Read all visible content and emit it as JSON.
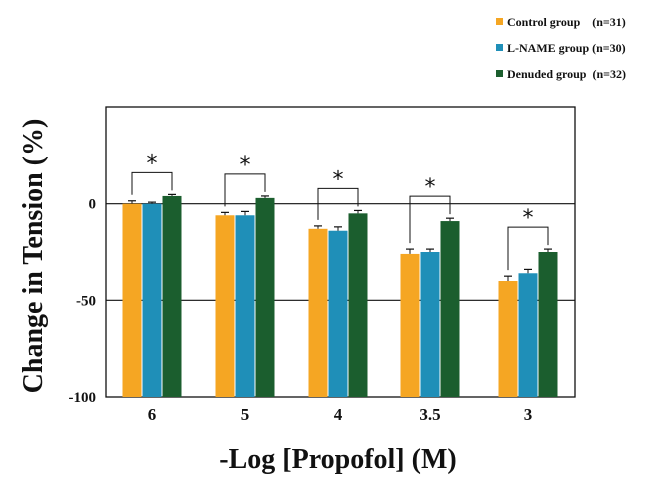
{
  "chart_data": {
    "type": "bar",
    "categories": [
      "6",
      "5",
      "4",
      "3.5",
      "3"
    ],
    "series": [
      {
        "name": "Control group",
        "count": "(n=31)",
        "color": "#f5a623",
        "values": [
          0,
          -6,
          -13,
          -26,
          -40
        ],
        "errors": [
          1.5,
          1.5,
          1.5,
          2.5,
          2.5
        ]
      },
      {
        "name": "L-NAME group",
        "count": "(n=30)",
        "color": "#1f8fb8",
        "values": [
          0,
          -6,
          -14,
          -25,
          -36
        ],
        "errors": [
          0.8,
          2,
          2,
          1.5,
          2
        ]
      },
      {
        "name": "Denuded group",
        "count": "(n=32)",
        "color": "#1b5e2e",
        "values": [
          4,
          3,
          -5,
          -9,
          -25
        ],
        "errors": [
          0.8,
          1,
          1.5,
          1.5,
          1.5
        ]
      }
    ],
    "significance": [
      "*",
      "*",
      "*",
      "*",
      "*"
    ],
    "xlabel": "-Log [Propofol] (M)",
    "ylabel": "Change in Tension (%)",
    "yticks": [
      "0",
      "-50",
      "-100"
    ],
    "ylim": [
      -100,
      50
    ],
    "grid": "horizontal lines at 0 and -50",
    "legend": "top-right"
  }
}
